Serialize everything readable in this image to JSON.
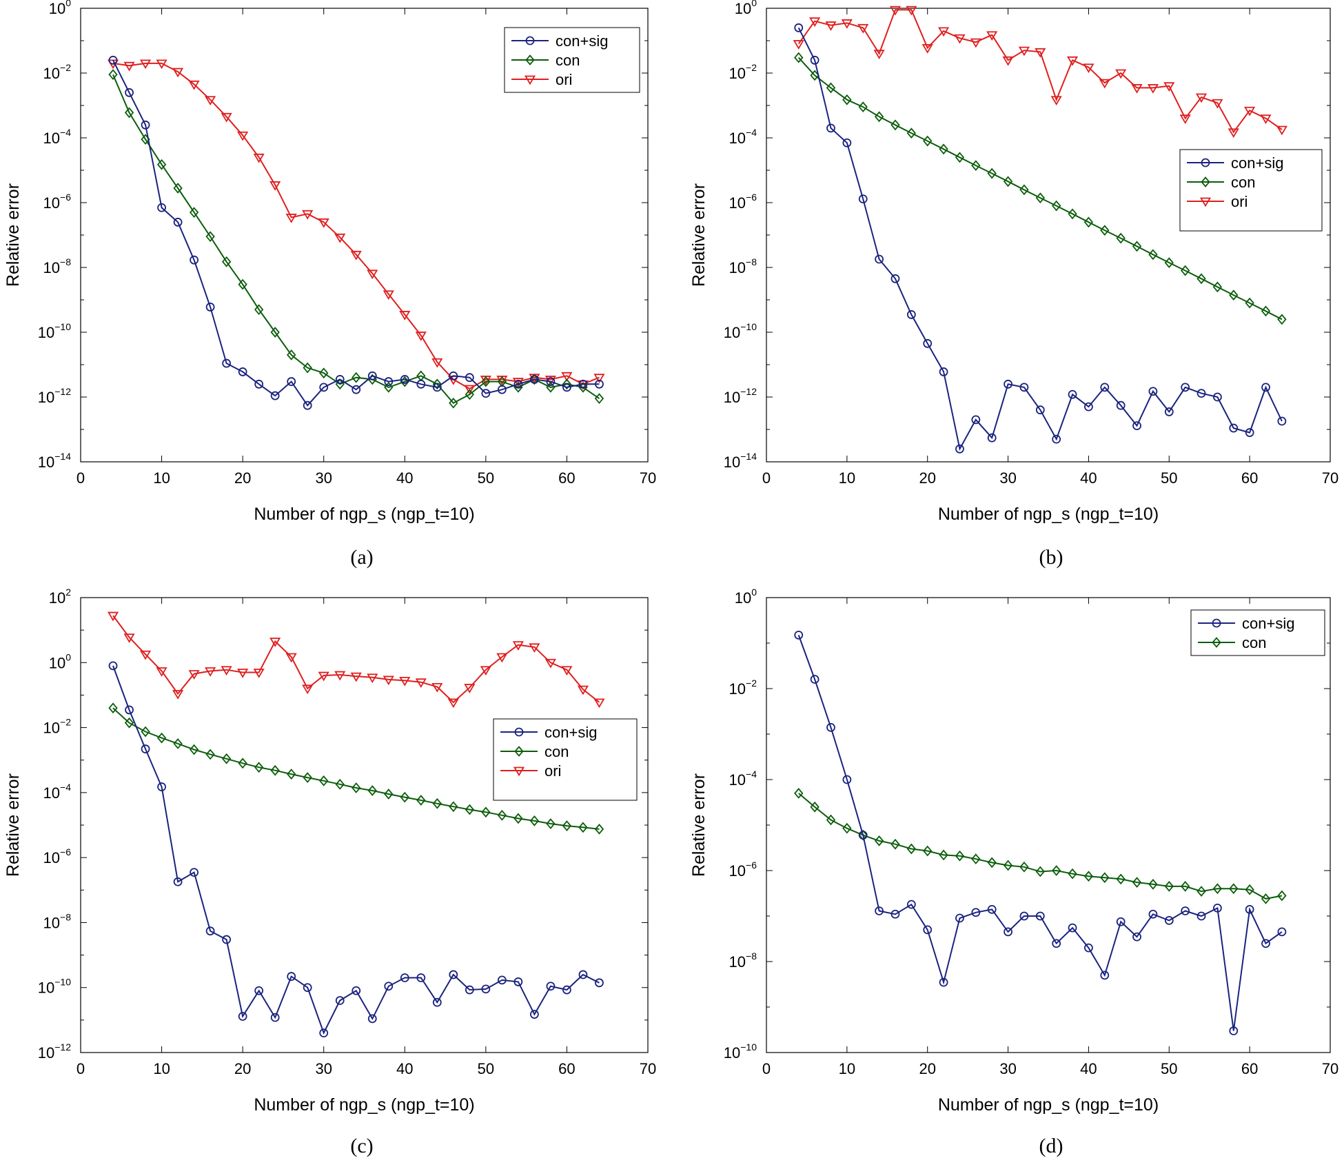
{
  "colors": {
    "con_sig": "#1a237e",
    "con": "#0b5d0b",
    "ori": "#e01e1e",
    "axis": "#000000"
  },
  "chart_data": [
    {
      "type": "line",
      "panel": "(a)",
      "caption": "(a)",
      "xlabel": "Number of ngp_s (ngp_t=10)",
      "ylabel": "Relative error",
      "yscale": "log",
      "xlim": [
        0,
        70
      ],
      "ylim_exp": [
        -14,
        0
      ],
      "xticks": [
        "0",
        "10",
        "20",
        "30",
        "40",
        "50",
        "60",
        "70"
      ],
      "yticks_exp": [
        -14,
        -12,
        -10,
        -8,
        -6,
        -4,
        -2,
        0
      ],
      "legend_position": "top-right",
      "x": [
        4,
        6,
        8,
        10,
        12,
        14,
        16,
        18,
        20,
        22,
        24,
        26,
        28,
        30,
        32,
        34,
        36,
        38,
        40,
        42,
        44,
        46,
        48,
        50,
        52,
        54,
        56,
        58,
        60,
        62,
        64
      ],
      "series": [
        {
          "name": "con+sig",
          "marker": "circle",
          "color": "#1a237e",
          "values": [
            0.025,
            0.0025,
            0.00025,
            7e-07,
            2.5e-07,
            1.7e-08,
            6e-10,
            1.1e-11,
            6e-12,
            2.5e-12,
            1.1e-12,
            3e-12,
            5.5e-13,
            2e-12,
            3.5e-12,
            1.7e-12,
            4.5e-12,
            3e-12,
            3.5e-12,
            2.5e-12,
            2e-12,
            4.5e-12,
            4e-12,
            1.3e-12,
            1.7e-12,
            2.5e-12,
            3.5e-12,
            3e-12,
            2e-12,
            2.5e-12,
            2.5e-12
          ]
        },
        {
          "name": "con",
          "marker": "diamond",
          "color": "#0b5d0b",
          "values": [
            0.009,
            0.0006,
            9e-05,
            1.5e-05,
            2.8e-06,
            5e-07,
            9e-08,
            1.5e-08,
            3e-09,
            5e-10,
            1e-10,
            2e-11,
            8e-12,
            5.5e-12,
            2.5e-12,
            4e-12,
            3.5e-12,
            2e-12,
            3e-12,
            4.5e-12,
            2.5e-12,
            6.5e-13,
            1.2e-12,
            3e-12,
            3e-12,
            2e-12,
            3.5e-12,
            2e-12,
            2.5e-12,
            2e-12,
            9e-13
          ]
        },
        {
          "name": "ori",
          "marker": "triangle",
          "color": "#e01e1e",
          "values": [
            0.02,
            0.017,
            0.02,
            0.02,
            0.011,
            0.0045,
            0.0015,
            0.00045,
            0.00012,
            2.5e-05,
            3.5e-06,
            3.5e-07,
            4.5e-07,
            2.5e-07,
            8.5e-08,
            2.5e-08,
            6.5e-09,
            1.5e-09,
            3.5e-10,
            8e-11,
            1.2e-11,
            3.5e-12,
            1.8e-12,
            3.5e-12,
            3.5e-12,
            3e-12,
            4e-12,
            3.5e-12,
            4.5e-12,
            2.5e-12,
            4e-12
          ]
        }
      ]
    },
    {
      "type": "line",
      "panel": "(b)",
      "caption": "(b)",
      "xlabel": "Number of ngp_s (ngp_t=10)",
      "ylabel": "Relative error",
      "yscale": "log",
      "xlim": [
        0,
        70
      ],
      "ylim_exp": [
        -14,
        0
      ],
      "xticks": [
        "0",
        "10",
        "20",
        "30",
        "40",
        "50",
        "60",
        "70"
      ],
      "yticks_exp": [
        -14,
        -12,
        -10,
        -8,
        -6,
        -4,
        -2,
        0
      ],
      "legend_position": "middle-right",
      "x": [
        4,
        6,
        8,
        10,
        12,
        14,
        16,
        18,
        20,
        22,
        24,
        26,
        28,
        30,
        32,
        34,
        36,
        38,
        40,
        42,
        44,
        46,
        48,
        50,
        52,
        54,
        56,
        58,
        60,
        62,
        64
      ],
      "series": [
        {
          "name": "con+sig",
          "marker": "circle",
          "color": "#1a237e",
          "values": [
            0.25,
            0.025,
            0.0002,
            7e-05,
            1.3e-06,
            1.8e-08,
            4.5e-09,
            3.5e-10,
            4.5e-11,
            6e-12,
            2.5e-14,
            2e-13,
            5.5e-14,
            2.5e-12,
            2e-12,
            4e-13,
            5e-14,
            1.2e-12,
            5e-13,
            2e-12,
            5.5e-13,
            1.3e-13,
            1.5e-12,
            3.5e-13,
            2e-12,
            1.3e-12,
            1e-12,
            1.1e-13,
            8e-14,
            2e-12,
            1.8e-13
          ]
        },
        {
          "name": "con",
          "marker": "diamond",
          "color": "#0b5d0b",
          "values": [
            0.03,
            0.0085,
            0.0035,
            0.0015,
            0.0009,
            0.00045,
            0.00025,
            0.00014,
            8e-05,
            4.5e-05,
            2.5e-05,
            1.4e-05,
            8e-06,
            4.5e-06,
            2.5e-06,
            1.4e-06,
            8e-07,
            4.5e-07,
            2.5e-07,
            1.4e-07,
            8e-08,
            4.5e-08,
            2.5e-08,
            1.4e-08,
            8e-09,
            4.5e-09,
            2.5e-09,
            1.4e-09,
            8e-10,
            4.5e-10,
            2.5e-10
          ]
        },
        {
          "name": "ori",
          "marker": "triangle",
          "color": "#e01e1e",
          "values": [
            0.08,
            0.4,
            0.3,
            0.35,
            0.25,
            0.04,
            0.9,
            0.9,
            0.06,
            0.2,
            0.12,
            0.09,
            0.15,
            0.025,
            0.05,
            0.045,
            0.0015,
            0.025,
            0.015,
            0.005,
            0.01,
            0.0035,
            0.0035,
            0.004,
            0.0004,
            0.0018,
            0.0012,
            0.00015,
            0.0007,
            0.0004,
            0.00018
          ]
        }
      ]
    },
    {
      "type": "line",
      "panel": "(c)",
      "caption": "(c)",
      "xlabel": "Number of ngp_s (ngp_t=10)",
      "ylabel": "Relative error",
      "yscale": "log",
      "xlim": [
        0,
        70
      ],
      "ylim_exp": [
        -12,
        2
      ],
      "xticks": [
        "0",
        "10",
        "20",
        "30",
        "40",
        "50",
        "60",
        "70"
      ],
      "yticks_exp": [
        -12,
        -10,
        -8,
        -6,
        -4,
        -2,
        0,
        2
      ],
      "legend_position": "middle-right",
      "x": [
        4,
        6,
        8,
        10,
        12,
        14,
        16,
        18,
        20,
        22,
        24,
        26,
        28,
        30,
        32,
        34,
        36,
        38,
        40,
        42,
        44,
        46,
        48,
        50,
        52,
        54,
        56,
        58,
        60,
        62,
        64
      ],
      "series": [
        {
          "name": "con+sig",
          "marker": "circle",
          "color": "#1a237e",
          "values": [
            0.8,
            0.035,
            0.0022,
            0.00015,
            1.8e-07,
            3.5e-07,
            5.5e-09,
            3e-09,
            1.3e-11,
            8e-11,
            1.2e-11,
            2.2e-10,
            1e-10,
            4e-12,
            4e-11,
            8e-11,
            1.1e-11,
            1.1e-10,
            2e-10,
            2e-10,
            3.5e-11,
            2.5e-10,
            8.5e-11,
            9e-11,
            1.7e-10,
            1.5e-10,
            1.5e-11,
            1.1e-10,
            8.5e-11,
            2.5e-10,
            1.4e-10
          ]
        },
        {
          "name": "con",
          "marker": "diamond",
          "color": "#0b5d0b",
          "values": [
            0.04,
            0.014,
            0.0075,
            0.0048,
            0.0032,
            0.0021,
            0.0015,
            0.0011,
            0.0008,
            0.0006,
            0.00048,
            0.00037,
            0.00029,
            0.00023,
            0.00018,
            0.00014,
            0.000115,
            9e-05,
            7.2e-05,
            5.8e-05,
            4.6e-05,
            3.7e-05,
            3e-05,
            2.5e-05,
            2e-05,
            1.6e-05,
            1.35e-05,
            1.1e-05,
            9.5e-06,
            8.5e-06,
            7.5e-06
          ]
        },
        {
          "name": "ori",
          "marker": "triangle",
          "color": "#e01e1e",
          "values": [
            28,
            6,
            1.8,
            0.55,
            0.11,
            0.45,
            0.55,
            0.6,
            0.5,
            0.5,
            4.5,
            1.5,
            0.16,
            0.4,
            0.42,
            0.38,
            0.35,
            0.3,
            0.28,
            0.25,
            0.18,
            0.06,
            0.17,
            0.6,
            1.5,
            3.5,
            3,
            1,
            0.6,
            0.15,
            0.06
          ]
        }
      ]
    },
    {
      "type": "line",
      "panel": "(d)",
      "caption": "(d)",
      "xlabel": "Number of ngp_s (ngp_t=10)",
      "ylabel": "Relative error",
      "yscale": "log",
      "xlim": [
        0,
        70
      ],
      "ylim_exp": [
        -10,
        0
      ],
      "xticks": [
        "0",
        "10",
        "20",
        "30",
        "40",
        "50",
        "60",
        "70"
      ],
      "yticks_exp": [
        -10,
        -8,
        -6,
        -4,
        -2,
        0
      ],
      "legend_position": "top-right",
      "x": [
        4,
        6,
        8,
        10,
        12,
        14,
        16,
        18,
        20,
        22,
        24,
        26,
        28,
        30,
        32,
        34,
        36,
        38,
        40,
        42,
        44,
        46,
        48,
        50,
        52,
        54,
        56,
        58,
        60,
        62,
        64
      ],
      "series": [
        {
          "name": "con+sig",
          "marker": "circle",
          "color": "#1a237e",
          "values": [
            0.15,
            0.016,
            0.0014,
            0.0001,
            6e-06,
            1.3e-07,
            1.1e-07,
            1.8e-07,
            5e-08,
            3.5e-09,
            9e-08,
            1.2e-07,
            1.4e-07,
            4.5e-08,
            1e-07,
            1e-07,
            2.5e-08,
            5.5e-08,
            2e-08,
            5e-09,
            7.5e-08,
            3.5e-08,
            1.1e-07,
            8e-08,
            1.3e-07,
            1e-07,
            1.5e-07,
            3e-10,
            1.4e-07,
            2.5e-08,
            4.5e-08
          ]
        },
        {
          "name": "con",
          "marker": "diamond",
          "color": "#0b5d0b",
          "values": [
            5e-05,
            2.5e-05,
            1.3e-05,
            8.5e-06,
            6e-06,
            4.5e-06,
            3.8e-06,
            3e-06,
            2.7e-06,
            2.2e-06,
            2.1e-06,
            1.8e-06,
            1.5e-06,
            1.3e-06,
            1.2e-06,
            9.5e-07,
            1e-06,
            8.5e-07,
            7.5e-07,
            7e-07,
            6.5e-07,
            5.5e-07,
            5e-07,
            4.5e-07,
            4.5e-07,
            3.5e-07,
            4e-07,
            4e-07,
            3.8e-07,
            2.4e-07,
            2.8e-07
          ]
        }
      ]
    }
  ]
}
